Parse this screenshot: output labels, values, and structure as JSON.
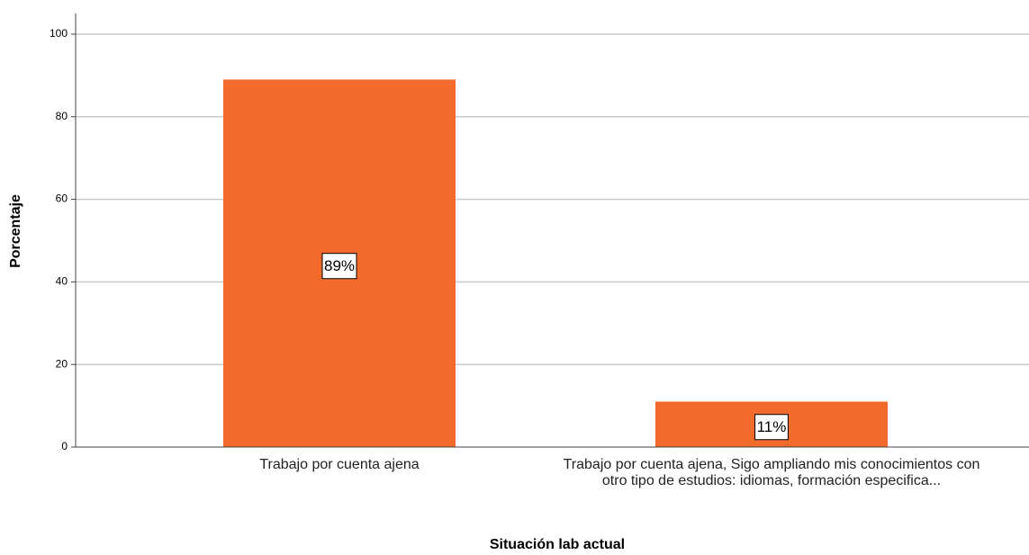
{
  "chart_data": {
    "type": "bar",
    "x_label": "Situación lab actual",
    "y_label": "Porcentaje",
    "categories": [
      "Trabajo por cuenta ajena",
      "Trabajo por cuenta ajena, Sigo ampliando mis conocimientos con otro tipo de estudios: idiomas, formación especifica..."
    ],
    "values": [
      89,
      11
    ],
    "value_labels": [
      "89%",
      "11%"
    ],
    "color": "#f26b2c",
    "ylim": [
      0,
      105
    ],
    "yticks": [
      0,
      20,
      40,
      60,
      80,
      100
    ],
    "grid": true
  }
}
